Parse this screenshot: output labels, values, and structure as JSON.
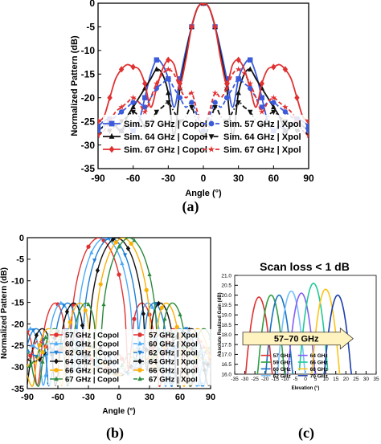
{
  "panels": {
    "a_label": "(a)",
    "b_label": "(b)",
    "c_label": "(c)"
  },
  "chart_data": [
    {
      "id": "a",
      "type": "line",
      "xlabel": "Angle (°)",
      "ylabel": "Normalized Pattern (dB)",
      "xlim": [
        -90,
        90
      ],
      "ylim": [
        -35,
        0
      ],
      "xticks": [
        -90,
        -60,
        -30,
        0,
        30,
        60,
        90
      ],
      "yticks": [
        0,
        -5,
        -10,
        -15,
        -20,
        -25,
        -30,
        -35
      ],
      "grid": false,
      "legend_position": "bottom",
      "x": [
        -90,
        -85,
        -80,
        -75,
        -70,
        -65,
        -60,
        -55,
        -50,
        -45,
        -40,
        -35,
        -30,
        -25,
        -20,
        -15,
        -10,
        -5,
        0,
        5,
        10,
        15,
        20,
        25,
        30,
        35,
        40,
        45,
        50,
        55,
        60,
        65,
        70,
        75,
        80,
        85,
        90
      ],
      "series": [
        {
          "name": "Sim. 57 GHz | Copol",
          "color": "#3b5bdb",
          "marker": "square",
          "dash": "solid",
          "values": [
            -26,
            -25,
            -24.5,
            -26,
            -27,
            -26,
            -27,
            -25,
            -20,
            -15,
            -12,
            -13,
            -16,
            -22,
            -16,
            -10,
            -5,
            -1,
            0,
            -1,
            -5,
            -10,
            -16,
            -22,
            -16,
            -13,
            -12,
            -15,
            -20,
            -25,
            -27,
            -26,
            -27,
            -26,
            -24.5,
            -25,
            -26
          ]
        },
        {
          "name": "Sim. 64 GHz | Copol",
          "color": "#111111",
          "marker": "triangle",
          "dash": "solid",
          "values": [
            -27,
            -26,
            -25,
            -26,
            -27,
            -24,
            -22,
            -20,
            -18,
            -16,
            -14,
            -15,
            -19,
            -28,
            -18,
            -11,
            -5,
            -1,
            0,
            -1,
            -5,
            -11,
            -18,
            -28,
            -19,
            -15,
            -14,
            -16,
            -18,
            -20,
            -22,
            -24,
            -27,
            -26,
            -25,
            -26,
            -27
          ]
        },
        {
          "name": "Sim. 67 GHz | Copol",
          "color": "#e03131",
          "marker": "diamond",
          "dash": "solid",
          "values": [
            -25,
            -24,
            -20,
            -16,
            -14,
            -13,
            -13.5,
            -14,
            -17,
            -22,
            -18,
            -14,
            -12,
            -13,
            -17,
            -12,
            -5,
            -1,
            0,
            -1,
            -5,
            -12,
            -17,
            -13,
            -12,
            -14,
            -18,
            -22,
            -17,
            -14,
            -13.5,
            -13,
            -14,
            -16,
            -20,
            -24,
            -25
          ]
        },
        {
          "name": "Sim. 57 GHz | Xpol",
          "color": "#3b5bdb",
          "marker": "circle",
          "dash": "dash",
          "values": [
            -27,
            -26,
            -25,
            -24,
            -23,
            -22,
            -21,
            -21,
            -22,
            -20,
            -18,
            -17,
            -16,
            -18,
            -20,
            -22,
            -21,
            -24,
            -27,
            -24,
            -21,
            -22,
            -20,
            -18,
            -16,
            -17,
            -18,
            -20,
            -22,
            -21,
            -21,
            -22,
            -23,
            -24,
            -25,
            -26,
            -27
          ]
        },
        {
          "name": "Sim. 64 GHz | Xpol",
          "color": "#111111",
          "marker": "invtriangle",
          "dash": "dashdot",
          "values": [
            -28,
            -27,
            -27,
            -26,
            -25,
            -24,
            -23,
            -24,
            -26,
            -25,
            -23,
            -22,
            -21,
            -23,
            -25,
            -24,
            -22,
            -26,
            -28,
            -26,
            -22,
            -24,
            -25,
            -23,
            -21,
            -22,
            -23,
            -25,
            -26,
            -24,
            -23,
            -24,
            -25,
            -26,
            -27,
            -27,
            -28
          ]
        },
        {
          "name": "Sim. 67 GHz | Xpol",
          "color": "#e03131",
          "marker": "star",
          "dash": "dash",
          "values": [
            -28,
            -27,
            -25,
            -23,
            -22,
            -21,
            -20,
            -21,
            -23,
            -20,
            -17,
            -15,
            -14,
            -15,
            -18,
            -20,
            -19,
            -23,
            -26,
            -23,
            -19,
            -20,
            -18,
            -15,
            -14,
            -15,
            -17,
            -20,
            -23,
            -21,
            -20,
            -21,
            -22,
            -23,
            -25,
            -27,
            -28
          ]
        }
      ]
    },
    {
      "id": "b",
      "type": "line",
      "xlabel": "Angle (°)",
      "ylabel": "Normalized Pattern (dB)",
      "xlim": [
        -90,
        90
      ],
      "ylim": [
        -35,
        0
      ],
      "xticks": [
        -90,
        -60,
        -30,
        0,
        30,
        60,
        90
      ],
      "yticks": [
        0,
        -5,
        -10,
        -15,
        -20,
        -25,
        -30,
        -35
      ],
      "grid": false,
      "legend_position": "bottom-left",
      "series": [
        {
          "name": "57 GHz | Copol",
          "color": "#e03131",
          "marker": "circle",
          "peak": -20
        },
        {
          "name": "60 GHz | Copol",
          "color": "#4dabf7",
          "marker": "triangle",
          "peak": -14
        },
        {
          "name": "62 GHz | Copol",
          "color": "#1c7ed6",
          "marker": "invtriangle",
          "peak": -8
        },
        {
          "name": "64 GHz | Copol",
          "color": "#111111",
          "marker": "diamond",
          "peak": -2
        },
        {
          "name": "66 GHz | Copol",
          "color": "#fab005",
          "marker": "circle",
          "peak": 4
        },
        {
          "name": "67 GHz | Copol",
          "color": "#2b8a3e",
          "marker": "triangle",
          "peak": 10
        },
        {
          "name": "57 GHz | Xpol",
          "color": "#e03131",
          "marker": "circle",
          "dash": "dash"
        },
        {
          "name": "60 GHz | Xpol",
          "color": "#4dabf7",
          "marker": "triangle",
          "dash": "dash"
        },
        {
          "name": "62 GHz | Xpol",
          "color": "#1c7ed6",
          "marker": "invtriangle",
          "dash": "dash"
        },
        {
          "name": "64 GHz | Xpol",
          "color": "#111111",
          "marker": "diamond",
          "dash": "dash"
        },
        {
          "name": "66 GHz | Xpol",
          "color": "#fab005",
          "marker": "circle",
          "dash": "dash"
        },
        {
          "name": "67 GHz | Xpol",
          "color": "#2b8a3e",
          "marker": "triangle",
          "dash": "dash"
        }
      ]
    },
    {
      "id": "c",
      "type": "line",
      "title": "Scan loss < 1 dB",
      "xlabel": "Elevation (°)",
      "ylabel": "Absolute Realized Gain (dB)",
      "xlim": [
        -35,
        35
      ],
      "ylim": [
        16.0,
        21.0
      ],
      "xticks": [
        -35,
        -30,
        -25,
        -20,
        -15,
        -10,
        -5,
        0,
        5,
        10,
        15,
        20,
        25,
        30,
        35
      ],
      "yticks": [
        16.0,
        16.5,
        17.0,
        17.5,
        18.0,
        18.5,
        19.0,
        19.5,
        20.0,
        20.5,
        21.0
      ],
      "grid": false,
      "annotation": "57–70 GHz",
      "legend_position": "bottom-center",
      "series": [
        {
          "name": "57 GHz",
          "color": "#e03131",
          "peak_x": -23,
          "peak_y": 19.9
        },
        {
          "name": "59 GHz",
          "color": "#2f9e44",
          "peak_x": -17,
          "peak_y": 20.0
        },
        {
          "name": "60 GHz",
          "color": "#1971c2",
          "peak_x": -13,
          "peak_y": 20.0
        },
        {
          "name": "62 GHz",
          "color": "#74c0fc",
          "peak_x": -7,
          "peak_y": 20.2
        },
        {
          "name": "64 GHz",
          "color": "#845ef7",
          "peak_x": -2,
          "peak_y": 20.1
        },
        {
          "name": "66 GHz",
          "color": "#20c997",
          "peak_x": 4,
          "peak_y": 20.6
        },
        {
          "name": "68 GHz",
          "color": "#fcc419",
          "peak_x": 10,
          "peak_y": 20.3
        },
        {
          "name": "70 GHz",
          "color": "#1c3faa",
          "peak_x": 16,
          "peak_y": 20.0
        }
      ]
    }
  ]
}
